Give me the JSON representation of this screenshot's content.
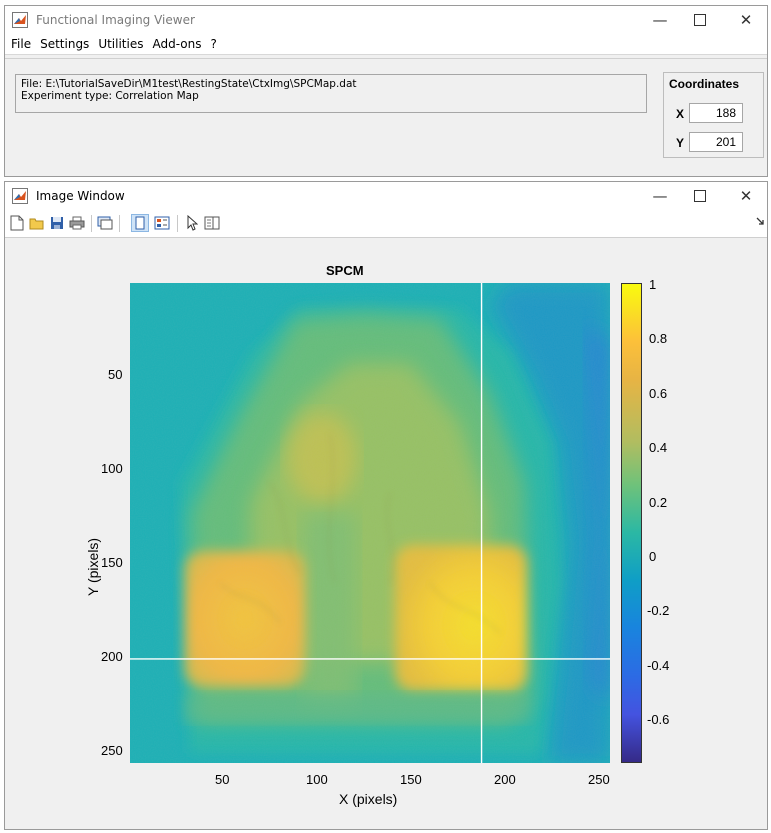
{
  "main_window": {
    "title": "Functional Imaging Viewer",
    "menu": [
      "File",
      "Settings",
      "Utilities",
      "Add-ons",
      "?"
    ],
    "info": {
      "file_line": "File: E:\\TutorialSaveDir\\M1test\\RestingState\\CtxImg\\SPCMap.dat",
      "type_line": "Experiment type: Correlation Map"
    },
    "coordinates": {
      "title": "Coordinates",
      "x_label": "X",
      "x_value": "188",
      "y_label": "Y",
      "y_value": "201"
    }
  },
  "image_window": {
    "title": "Image Window",
    "toolbar_icons": [
      "new-figure-icon",
      "open-file-icon",
      "save-icon",
      "print-icon",
      "link-plot-icon",
      "hide-plot-tools-icon",
      "show-plot-tools-icon",
      "edit-plot-icon",
      "open-property-inspector-icon",
      "dock-arrow-icon"
    ],
    "plot": {
      "title": "SPCM",
      "xlabel": "X (pixels)",
      "ylabel": "Y (pixels)",
      "x_ticks": [
        "50",
        "100",
        "150",
        "200",
        "250"
      ],
      "y_ticks": [
        "50",
        "100",
        "150",
        "200",
        "250"
      ],
      "crosshair": {
        "x": 188,
        "y": 201
      },
      "image_extent": {
        "x": [
          0.5,
          256.5
        ],
        "y": [
          0.5,
          256.5
        ]
      },
      "colormap": "parula",
      "colorbar": {
        "ticks": [
          "1",
          "0.8",
          "0.6",
          "0.4",
          "0.2",
          "0",
          "-0.2",
          "-0.4",
          "-0.6"
        ],
        "limits": [
          -0.77,
          1
        ]
      }
    }
  },
  "colors": {
    "window_bg": "#f0f0f0",
    "field_border": "#a6a6a6",
    "crosshair": "#ffffff",
    "parula_low": "#352a87",
    "parula_mid": "#12b0a6",
    "parula_high": "#f9fb0e"
  }
}
